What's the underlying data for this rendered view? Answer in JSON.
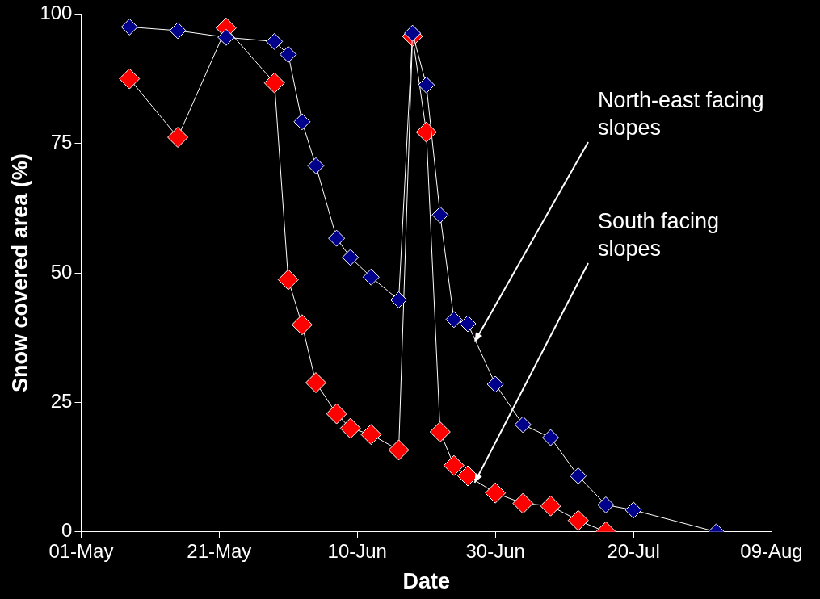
{
  "chart_data": {
    "type": "line",
    "xlabel": "Date",
    "ylabel": "Snow covered area (%)",
    "xlim": [
      "--05-01",
      "--08-09"
    ],
    "xticks": [
      {
        "value": "--05-01",
        "label": "01-May"
      },
      {
        "value": "--05-21",
        "label": "21-May"
      },
      {
        "value": "--06-10",
        "label": "10-Jun"
      },
      {
        "value": "--06-30",
        "label": "30-Jun"
      },
      {
        "value": "--07-20",
        "label": "20-Jul"
      },
      {
        "value": "--08-09",
        "label": "09-Aug"
      }
    ],
    "ylim": [
      0,
      100
    ],
    "yticks": [
      0,
      25,
      50,
      75,
      100
    ],
    "grid": false,
    "legend": false,
    "marker": "diamond",
    "line_style": "solid",
    "series": [
      {
        "color": "#00008b",
        "x": [
          "--05-08",
          "--05-15",
          "--05-22",
          "--05-29",
          "--05-31",
          "--06-02",
          "--06-04",
          "--06-07",
          "--06-09",
          "--06-12",
          "--06-16",
          "--06-18",
          "--06-20",
          "--06-22",
          "--06-24",
          "--06-26",
          "--06-30",
          "--07-04",
          "--07-08",
          "--07-12",
          "--07-16",
          "--07-20",
          "--08-01"
        ],
        "values": [
          97.5,
          96.8,
          95.5,
          94.7,
          92.2,
          79.2,
          70.7,
          56.7,
          53,
          49.2,
          44.8,
          96.3,
          86.3,
          61.2,
          41,
          40.2,
          28.5,
          20.7,
          18.2,
          10.8,
          5.2,
          4.2,
          0
        ]
      },
      {
        "color": "#ff0000",
        "x": [
          "--05-08",
          "--05-15",
          "--05-22",
          "--05-29",
          "--05-31",
          "--06-02",
          "--06-04",
          "--06-07",
          "--06-09",
          "--06-12",
          "--06-16",
          "--06-18",
          "--06-20",
          "--06-22",
          "--06-24",
          "--06-26",
          "--06-30",
          "--07-04",
          "--07-08",
          "--07-12",
          "--07-16"
        ],
        "values": [
          87.5,
          76.2,
          97.3,
          86.7,
          48.7,
          40,
          28.8,
          22.8,
          20,
          18.8,
          15.8,
          95.7,
          77.2,
          19.3,
          12.8,
          10.8,
          7.5,
          5.5,
          5,
          2.2,
          0
        ]
      }
    ],
    "annotations": [
      {
        "text": "North-east facing slopes",
        "x": "--06-27",
        "y": 36.7
      },
      {
        "text": "South facing slopes",
        "x": "--06-27",
        "y": 9.5
      }
    ]
  }
}
